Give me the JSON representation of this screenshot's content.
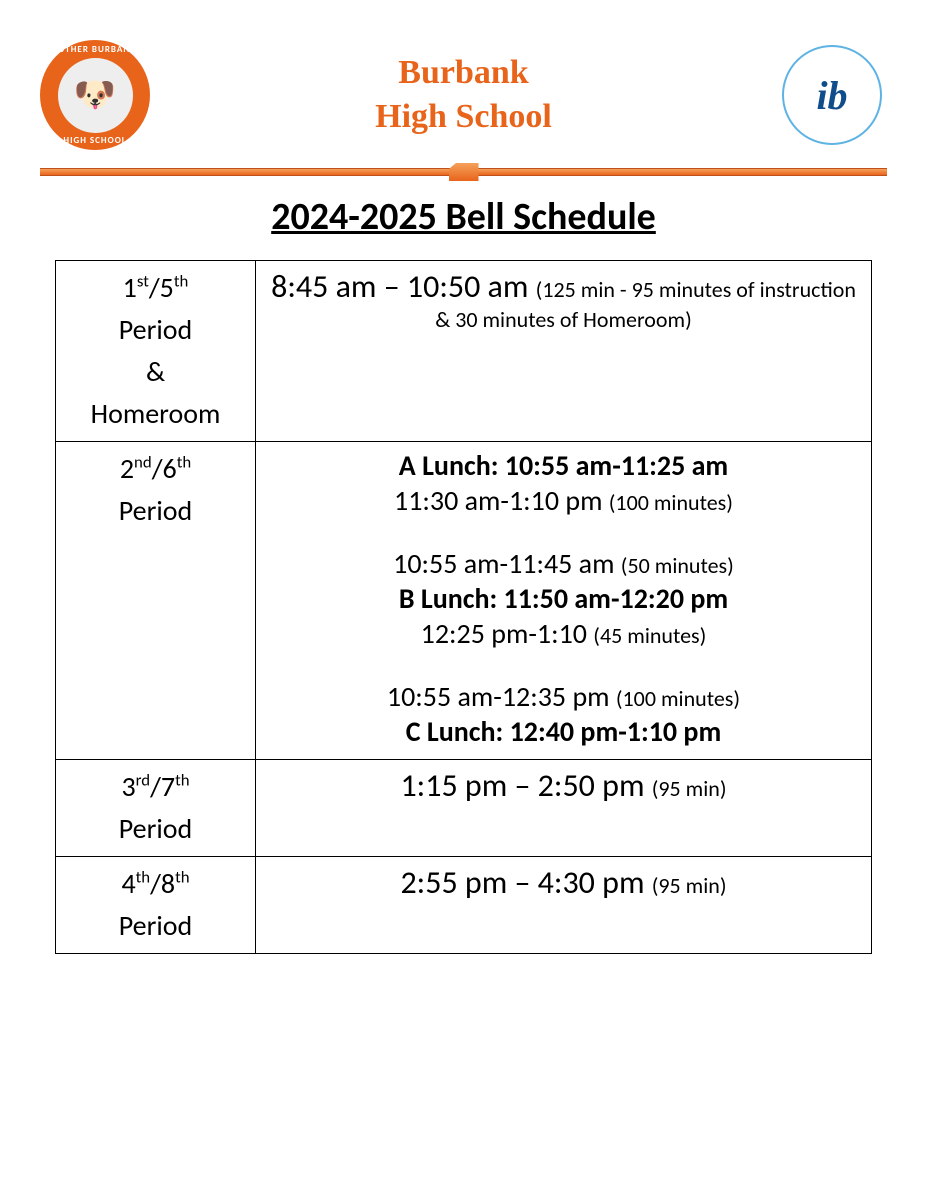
{
  "header": {
    "title_line1": "Burbank",
    "title_line2": "High School",
    "logo_left_top": "LUTHER BURBANK",
    "logo_left_bottom": "HIGH SCHOOL",
    "logo_right_text": "ib"
  },
  "page_title": "2024-2025 Bell Schedule",
  "colors": {
    "accent": "#e8641b",
    "text": "#000000",
    "ib_blue": "#5eb3e4",
    "ib_dark": "#104e8b",
    "background": "#ffffff"
  },
  "rows": [
    {
      "period_html": "1<sup>st</sup>/5<sup>th</sup><br>Period<br>&<br>Homeroom",
      "time_main": "8:45 am – 10:50 am ",
      "time_note": "(125 min - 95 minutes of instruction & 30 minutes of Homeroom)"
    },
    {
      "period_html": "2<sup>nd</sup>/6<sup>th</sup><br>Period",
      "blocks": [
        {
          "bold": "A Lunch:  10:55 am-11:25 am",
          "line1": "11:30 am-1:10 pm ",
          "note1": "(100 minutes)"
        },
        {
          "line1": "10:55 am-11:45 am ",
          "note1": "(50 minutes)",
          "bold": "B Lunch:  11:50 am-12:20 pm",
          "line2": "12:25 pm-1:10 ",
          "note2": "(45 minutes)"
        },
        {
          "line1": "10:55 am-12:35 pm ",
          "note1": "(100 minutes)",
          "bold": "C Lunch: 12:40 pm-1:10 pm"
        }
      ]
    },
    {
      "period_html": "3<sup>rd</sup>/7<sup>th</sup><br>Period",
      "time_main": "1:15 pm – 2:50 pm ",
      "time_note": "(95 min)"
    },
    {
      "period_html": "4<sup>th</sup>/8<sup>th</sup><br>Period",
      "time_main": "2:55 pm – 4:30 pm ",
      "time_note": "(95 min)"
    }
  ]
}
